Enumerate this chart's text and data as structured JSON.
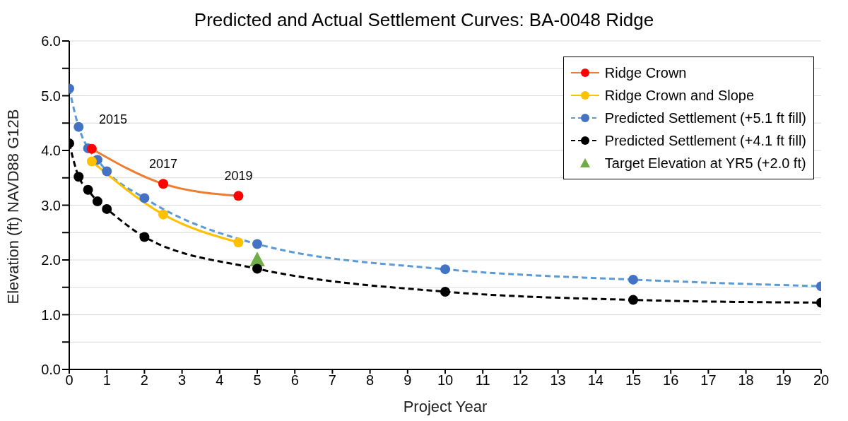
{
  "chart_data": {
    "type": "line",
    "title": "Predicted and Actual Settlement Curves: BA-0048 Ridge",
    "xlabel": "Project Year",
    "ylabel": "Elevation (ft) NAVD88 G12B",
    "series": [
      {
        "name": "Ridge Crown",
        "color": "#ed7d31",
        "colors": [
          "#ff0000",
          "#ff0000",
          "#ff0000"
        ],
        "marker": "circle",
        "line_style": "solid",
        "x": [
          0.6,
          2.5,
          4.5
        ],
        "values": [
          4.03,
          3.39,
          3.17
        ]
      },
      {
        "name": "Ridge Crown and Slope",
        "color": "#ffc000",
        "marker": "circle",
        "line_style": "solid",
        "x": [
          0.6,
          2.5,
          4.5
        ],
        "values": [
          3.8,
          2.83,
          2.32
        ]
      },
      {
        "name": "Predicted Settlement (+5.1 ft fill)",
        "color": "#5b9bd5",
        "colors": [
          "#4472c4",
          "#4472c4",
          "#4472c4",
          "#4472c4",
          "#4472c4",
          "#4472c4",
          "#4472c4",
          "#4472c4",
          "#4472c4",
          "#4472c4"
        ],
        "marker": "circle",
        "line_style": "dashed",
        "x": [
          0,
          0.25,
          0.5,
          0.75,
          1,
          2,
          5,
          10,
          15,
          20
        ],
        "values": [
          5.13,
          4.43,
          4.04,
          3.83,
          3.62,
          3.13,
          2.29,
          1.83,
          1.64,
          1.52
        ]
      },
      {
        "name": "Predicted Settlement (+4.1 ft fill)",
        "color": "#000000",
        "marker": "circle",
        "line_style": "dashed",
        "x": [
          0,
          0.25,
          0.5,
          0.75,
          1,
          2,
          5,
          10,
          15,
          20
        ],
        "values": [
          4.13,
          3.52,
          3.28,
          3.07,
          2.93,
          2.42,
          1.84,
          1.42,
          1.27,
          1.22
        ]
      },
      {
        "name": "Target Elevation at YR5 (+2.0 ft)",
        "type": "scatter",
        "color": "#70ad47",
        "marker": "triangle",
        "x": [
          5
        ],
        "values": [
          2.0
        ]
      }
    ],
    "annotations": [
      {
        "text": "2015",
        "x": 0.6,
        "y": 4.03
      },
      {
        "text": "2017",
        "x": 2.5,
        "y": 3.39
      },
      {
        "text": "2019",
        "x": 4.5,
        "y": 3.17
      }
    ],
    "xlim": [
      0,
      20
    ],
    "xticks": [
      0,
      1,
      2,
      3,
      4,
      5,
      6,
      7,
      8,
      9,
      10,
      11,
      12,
      13,
      14,
      15,
      16,
      17,
      18,
      19,
      20
    ],
    "ylim": [
      0,
      6
    ],
    "yticks": [
      {
        "value": 0,
        "label": "0.0"
      },
      {
        "value": 0.5,
        "label": null
      },
      {
        "value": 1,
        "label": "1.0"
      },
      {
        "value": 1.5,
        "label": null
      },
      {
        "value": 2,
        "label": "2.0"
      },
      {
        "value": 2.5,
        "label": null
      },
      {
        "value": 3,
        "label": "3.0"
      },
      {
        "value": 3.5,
        "label": null
      },
      {
        "value": 4,
        "label": "4.0"
      },
      {
        "value": 4.5,
        "label": null
      },
      {
        "value": 5,
        "label": "5.0"
      },
      {
        "value": 5.5,
        "label": null
      },
      {
        "value": 6,
        "label": "6.0"
      }
    ],
    "grid": "y",
    "legend": "top right"
  }
}
